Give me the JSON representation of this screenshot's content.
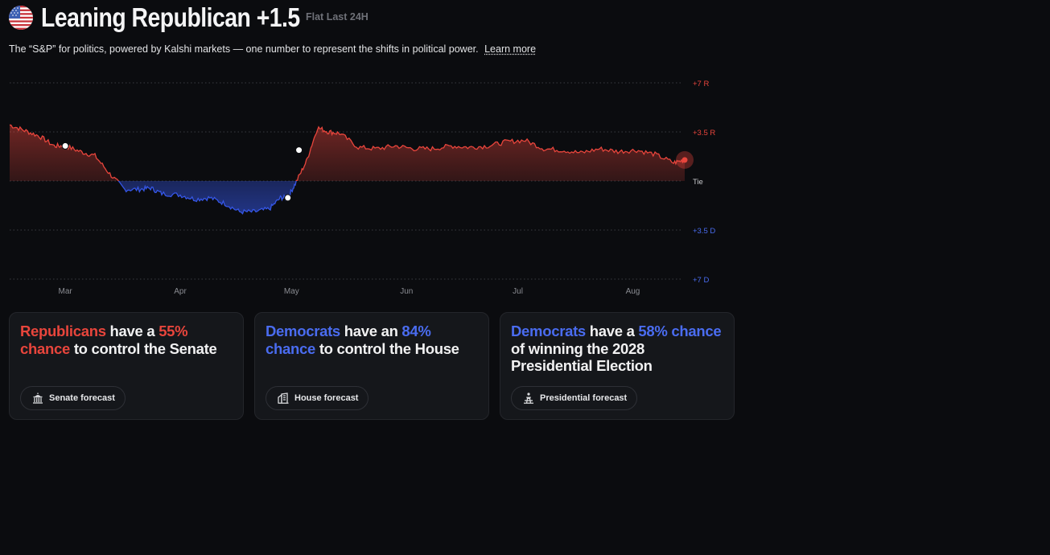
{
  "header": {
    "flag_icon": "us-flag-icon",
    "title": "Leaning Republican +1.5",
    "status": "Flat Last 24H",
    "subtitle": "The “S&P” for politics, powered by Kalshi markets — one number to represent the shifts in political power.",
    "learn_more": "Learn more"
  },
  "chart_data": {
    "type": "line",
    "title": "",
    "y_ticks": [
      {
        "label": "+7 R",
        "value": 7,
        "color": "#e8453c"
      },
      {
        "label": "+3.5 R",
        "value": 3.5,
        "color": "#e8453c"
      },
      {
        "label": "Tie",
        "value": 0,
        "color": "#c9cacd"
      },
      {
        "label": "+3.5 D",
        "value": -3.5,
        "color": "#4a6cf0"
      },
      {
        "label": "+7 D",
        "value": -7,
        "color": "#4a6cf0"
      }
    ],
    "ylim": [
      -7,
      7
    ],
    "x_ticks": [
      "Mar",
      "Apr",
      "May",
      "Jun",
      "Jul",
      "Aug"
    ],
    "colors": {
      "republican": "#e8453c",
      "democrat": "#3556e6",
      "grid": "#3a3c42"
    },
    "series": [
      {
        "x": [
          "Feb 14",
          "Feb 18",
          "Feb 22",
          "Feb 26",
          "Mar 1",
          "Mar 5",
          "Mar 9",
          "Mar 13",
          "Mar 17",
          "Mar 21",
          "Mar 24",
          "Mar 27",
          "Apr 1",
          "Apr 5",
          "Apr 9",
          "Apr 13",
          "Apr 17",
          "Apr 21",
          "Apr 25",
          "Apr 28",
          "Apr 30",
          "May 2",
          "May 5",
          "May 8",
          "May 11",
          "May 14",
          "May 19",
          "May 24",
          "May 29",
          "Jun 3",
          "Jun 8",
          "Jun 13",
          "Jun 18",
          "Jun 23",
          "Jun 28",
          "Jul 3",
          "Jul 8",
          "Jul 13",
          "Jul 18",
          "Jul 23",
          "Jul 28",
          "Aug 2",
          "Aug 7",
          "Aug 12",
          "Aug 15"
        ],
        "values": [
          4.0,
          3.6,
          3.2,
          2.5,
          2.5,
          2.1,
          1.8,
          0.5,
          -0.6,
          -0.6,
          -0.5,
          -0.9,
          -1.0,
          -1.3,
          -1.2,
          -1.6,
          -2.2,
          -2.2,
          -2.0,
          -1.2,
          -1.2,
          -0.2,
          1.4,
          3.8,
          3.5,
          3.4,
          2.4,
          2.3,
          2.5,
          2.3,
          2.3,
          2.5,
          2.4,
          2.5,
          2.8,
          2.9,
          2.3,
          2.2,
          2.0,
          2.3,
          2.1,
          2.2,
          1.9,
          1.3,
          1.5
        ]
      }
    ],
    "markers": [
      {
        "x": "Mar 1",
        "value": 2.5
      },
      {
        "x": "Apr 30",
        "value": -1.2
      },
      {
        "x": "May 3",
        "value": 2.2
      }
    ],
    "current": {
      "x": "Aug 15",
      "value": 1.5
    },
    "legend": "none",
    "grid": true
  },
  "cards": [
    {
      "party": "Republicans",
      "party_color": "red",
      "verb": "have a",
      "chance": "55% chance",
      "rest": "to control the Senate",
      "button_label": "Senate forecast",
      "icon": "capitol-building-icon"
    },
    {
      "party": "Democrats",
      "party_color": "blue",
      "verb": "have an",
      "chance": "84% chance",
      "rest": "to control the House",
      "button_label": "House forecast",
      "icon": "house-building-icon"
    },
    {
      "party": "Democrats",
      "party_color": "blue",
      "verb": "have a",
      "chance": "58% chance",
      "rest": "of winning the 2028 Presidential Election",
      "button_label": "Presidential forecast",
      "icon": "podium-icon"
    }
  ]
}
